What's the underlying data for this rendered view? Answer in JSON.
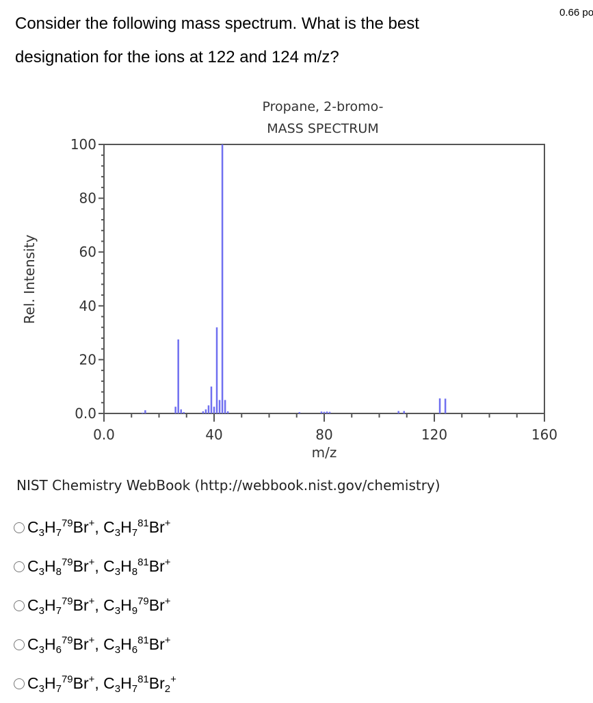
{
  "question": {
    "text": "Consider the following mass spectrum. What is the best designation for the ions at 122 and 124 m/z?",
    "points": "0.66 po"
  },
  "chart_data": {
    "type": "bar",
    "title": "Propane, 2-bromo-",
    "subtitle": "MASS SPECTRUM",
    "xlabel": "m/z",
    "ylabel": "Rel. Intensity",
    "xlim": [
      0,
      160
    ],
    "ylim": [
      0,
      100
    ],
    "x_ticks": [
      "0.0",
      "40",
      "80",
      "120",
      "160"
    ],
    "y_ticks": [
      "0.0",
      "20",
      "40",
      "60",
      "80",
      "100"
    ],
    "grid": false,
    "bar_color": "#6f6ff0",
    "x": [
      14,
      15,
      26,
      27,
      28,
      29,
      36,
      37,
      38,
      39,
      40,
      41,
      42,
      43,
      44,
      45,
      71,
      79,
      80,
      81,
      82,
      107,
      109,
      122,
      124
    ],
    "values": [
      0.3,
      1.2,
      2.5,
      27.5,
      1.5,
      0.5,
      0.8,
      1.5,
      3.0,
      10.0,
      2.5,
      32.0,
      5.0,
      100,
      5.0,
      0.8,
      0.5,
      0.7,
      0.6,
      0.7,
      0.6,
      0.9,
      0.9,
      5.6,
      5.5
    ],
    "source": "NIST Chemistry WebBook (http://webbook.nist.gov/chemistry)"
  },
  "options": [
    {
      "parts": [
        [
          "t",
          "C"
        ],
        [
          "sub",
          "3"
        ],
        [
          "t",
          "H"
        ],
        [
          "sub",
          "7"
        ],
        [
          "sup",
          "79"
        ],
        [
          "t",
          "Br"
        ],
        [
          "sup",
          "+"
        ],
        [
          "t",
          ", C"
        ],
        [
          "sub",
          "3"
        ],
        [
          "t",
          "H"
        ],
        [
          "sub",
          "7"
        ],
        [
          "sup",
          "81"
        ],
        [
          "t",
          "Br"
        ],
        [
          "sup",
          "+"
        ]
      ],
      "text": "C3H7 79Br+, C3H7 81Br+"
    },
    {
      "parts": [
        [
          "t",
          "C"
        ],
        [
          "sub",
          "3"
        ],
        [
          "t",
          "H"
        ],
        [
          "sub",
          "8"
        ],
        [
          "sup",
          "79"
        ],
        [
          "t",
          "Br"
        ],
        [
          "sup",
          "+"
        ],
        [
          "t",
          ", C"
        ],
        [
          "sub",
          "3"
        ],
        [
          "t",
          "H"
        ],
        [
          "sub",
          "8"
        ],
        [
          "sup",
          "81"
        ],
        [
          "t",
          "Br"
        ],
        [
          "sup",
          "+"
        ]
      ],
      "text": "C3H8 79Br+, C3H8 81Br+"
    },
    {
      "parts": [
        [
          "t",
          "C"
        ],
        [
          "sub",
          "3"
        ],
        [
          "t",
          "H"
        ],
        [
          "sub",
          "7"
        ],
        [
          "sup",
          "79"
        ],
        [
          "t",
          "Br"
        ],
        [
          "sup",
          "+"
        ],
        [
          "t",
          ", C"
        ],
        [
          "sub",
          "3"
        ],
        [
          "t",
          "H"
        ],
        [
          "sub",
          "9"
        ],
        [
          "sup",
          "79"
        ],
        [
          "t",
          "Br"
        ],
        [
          "sup",
          "+"
        ]
      ],
      "text": "C3H7 79Br+, C3H9 79Br+"
    },
    {
      "parts": [
        [
          "t",
          "C"
        ],
        [
          "sub",
          "3"
        ],
        [
          "t",
          "H"
        ],
        [
          "sub",
          "6"
        ],
        [
          "sup",
          "79"
        ],
        [
          "t",
          "Br"
        ],
        [
          "sup",
          "+"
        ],
        [
          "t",
          ", C"
        ],
        [
          "sub",
          "3"
        ],
        [
          "t",
          "H"
        ],
        [
          "sub",
          "6"
        ],
        [
          "sup",
          "81"
        ],
        [
          "t",
          "Br"
        ],
        [
          "sup",
          "+"
        ]
      ],
      "text": "C3H6 79Br+, C3H6 81Br+"
    },
    {
      "parts": [
        [
          "t",
          "C"
        ],
        [
          "sub",
          "3"
        ],
        [
          "t",
          "H"
        ],
        [
          "sub",
          "7"
        ],
        [
          "sup",
          "79"
        ],
        [
          "t",
          "Br"
        ],
        [
          "sup",
          "+"
        ],
        [
          "t",
          ", C"
        ],
        [
          "sub",
          "3"
        ],
        [
          "t",
          "H"
        ],
        [
          "sub",
          "7"
        ],
        [
          "sup",
          "81"
        ],
        [
          "t",
          "Br"
        ],
        [
          "sub",
          "2"
        ],
        [
          "sup",
          "+"
        ]
      ],
      "text": "C3H7 79Br+, C3H7 81Br2+"
    }
  ]
}
